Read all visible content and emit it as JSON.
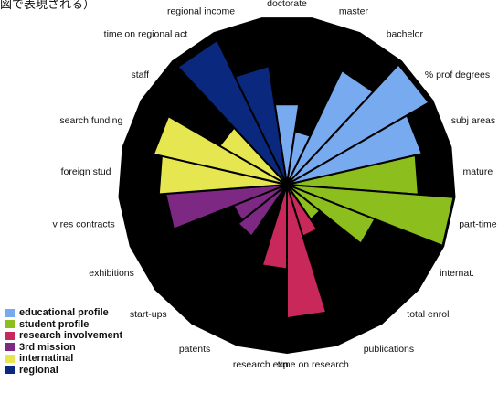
{
  "caption": "図で表現される）",
  "chart_data": {
    "type": "radial_bar",
    "title": "",
    "rmax": 10,
    "categories": [
      {
        "name": "doctorate",
        "group": "educational profile",
        "value": 4.8
      },
      {
        "name": "master",
        "group": "educational profile",
        "value": 3.2
      },
      {
        "name": "bachelor",
        "group": "educational profile",
        "value": 7.5
      },
      {
        "name": "% prof degrees",
        "group": "educational profile",
        "value": 9.7
      },
      {
        "name": "subj areas",
        "group": "educational profile",
        "value": 8.2
      },
      {
        "name": "mature",
        "group": "student profile",
        "value": 7.8
      },
      {
        "name": "part-time",
        "group": "student profile",
        "value": 9.9
      },
      {
        "name": "internat.",
        "group": "student profile",
        "value": 5.6
      },
      {
        "name": "total enrol",
        "group": "student profile",
        "value": 2.5
      },
      {
        "name": "publications",
        "group": "research involvement",
        "value": 3.2
      },
      {
        "name": "time on research",
        "group": "research involvement",
        "value": 7.9
      },
      {
        "name": "research exp",
        "group": "research involvement",
        "value": 5.0
      },
      {
        "name": "patents",
        "group": "research involvement",
        "value": 0.4
      },
      {
        "name": "start-ups",
        "group": "3rd mission",
        "value": 3.7
      },
      {
        "name": "exhibitions",
        "group": "3rd mission",
        "value": 3.4
      },
      {
        "name": "v res contracts",
        "group": "3rd mission",
        "value": 7.2
      },
      {
        "name": "foreign stud",
        "group": "internatinal",
        "value": 7.6
      },
      {
        "name": "search funding",
        "group": "internatinal",
        "value": 8.1
      },
      {
        "name": "staff",
        "group": "internatinal",
        "value": 4.6
      },
      {
        "name": "time on regional act",
        "group": "regional",
        "value": 9.5
      },
      {
        "name": "regional income",
        "group": "regional",
        "value": 7.1
      }
    ],
    "groups": [
      {
        "name": "educational profile",
        "color": "#78aaf0"
      },
      {
        "name": "student profile",
        "color": "#8cbe1e"
      },
      {
        "name": "research involvement",
        "color": "#c8285a"
      },
      {
        "name": "3rd mission",
        "color": "#7d2882"
      },
      {
        "name": "internatinal",
        "color": "#e6e650"
      },
      {
        "name": "regional",
        "color": "#0a287d"
      }
    ]
  },
  "colors": {
    "background_disc": "#000000",
    "spoke_separator": "#000000"
  }
}
